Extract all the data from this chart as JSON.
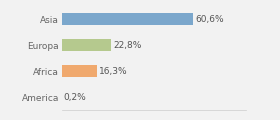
{
  "categories": [
    "Asia",
    "Europa",
    "Africa",
    "America"
  ],
  "values": [
    60.6,
    22.8,
    16.3,
    0.2
  ],
  "labels": [
    "60,6%",
    "22,8%",
    "16,3%",
    "0,2%"
  ],
  "bar_colors": [
    "#7ba7cc",
    "#b5c98e",
    "#f0a96e",
    "#7ba7cc"
  ],
  "background_color": "#f2f2f2",
  "xlim": [
    0,
    85
  ],
  "label_fontsize": 6.5,
  "tick_fontsize": 6.5,
  "bar_height": 0.45
}
